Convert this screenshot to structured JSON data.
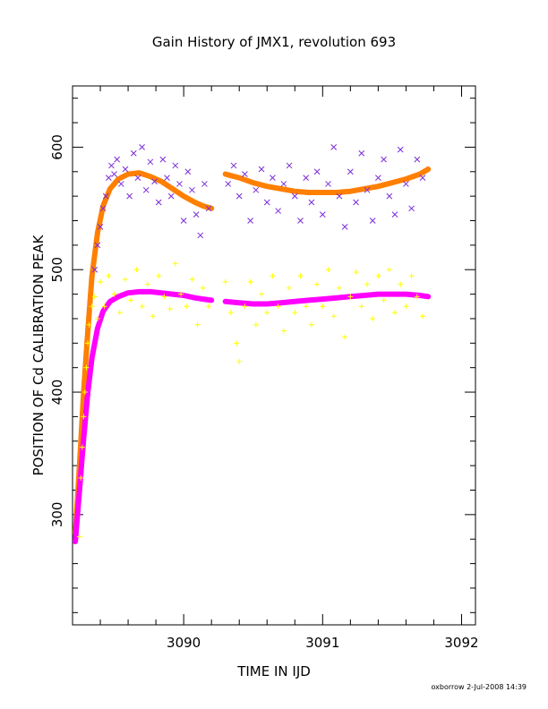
{
  "chart_data": {
    "type": "scatter",
    "title": "Gain History of JMX1, revolution 693",
    "xlabel": "TIME IN IJD",
    "ylabel": "POSITION OF Cd CALIBRATION PEAK",
    "xlim": [
      3089.2,
      3092.1
    ],
    "ylim": [
      210,
      650
    ],
    "xticks": [
      3090,
      3091,
      3092
    ],
    "xtick_labels": [
      "3090",
      "3091",
      "3092"
    ],
    "yticks": [
      300,
      400,
      500,
      600
    ],
    "ytick_labels": [
      "300",
      "400",
      "500",
      "600"
    ],
    "grid": false,
    "footer": "oxborrow  2-Jul-2008 14:39",
    "series": [
      {
        "marker": "x",
        "color": "#7b2cd8",
        "points": [
          [
            3089.36,
            500
          ],
          [
            3089.38,
            520
          ],
          [
            3089.4,
            535
          ],
          [
            3089.42,
            550
          ],
          [
            3089.44,
            560
          ],
          [
            3089.46,
            575
          ],
          [
            3089.48,
            585
          ],
          [
            3089.5,
            578
          ],
          [
            3089.52,
            590
          ],
          [
            3089.55,
            570
          ],
          [
            3089.58,
            582
          ],
          [
            3089.61,
            560
          ],
          [
            3089.64,
            595
          ],
          [
            3089.67,
            575
          ],
          [
            3089.7,
            600
          ],
          [
            3089.73,
            565
          ],
          [
            3089.76,
            588
          ],
          [
            3089.79,
            572
          ],
          [
            3089.82,
            555
          ],
          [
            3089.85,
            590
          ],
          [
            3089.88,
            575
          ],
          [
            3089.91,
            560
          ],
          [
            3089.94,
            585
          ],
          [
            3089.97,
            570
          ],
          [
            3090.0,
            540
          ],
          [
            3090.03,
            580
          ],
          [
            3090.06,
            565
          ],
          [
            3090.09,
            545
          ],
          [
            3090.12,
            528
          ],
          [
            3090.15,
            570
          ],
          [
            3090.18,
            550
          ],
          [
            3090.32,
            570
          ],
          [
            3090.36,
            585
          ],
          [
            3090.4,
            560
          ],
          [
            3090.44,
            578
          ],
          [
            3090.48,
            540
          ],
          [
            3090.52,
            565
          ],
          [
            3090.56,
            582
          ],
          [
            3090.6,
            555
          ],
          [
            3090.64,
            575
          ],
          [
            3090.68,
            548
          ],
          [
            3090.72,
            570
          ],
          [
            3090.76,
            585
          ],
          [
            3090.8,
            560
          ],
          [
            3090.84,
            540
          ],
          [
            3090.88,
            575
          ],
          [
            3090.92,
            555
          ],
          [
            3090.96,
            580
          ],
          [
            3091.0,
            545
          ],
          [
            3091.04,
            570
          ],
          [
            3091.08,
            600
          ],
          [
            3091.12,
            560
          ],
          [
            3091.16,
            535
          ],
          [
            3091.2,
            580
          ],
          [
            3091.24,
            555
          ],
          [
            3091.28,
            595
          ],
          [
            3091.32,
            565
          ],
          [
            3091.36,
            540
          ],
          [
            3091.4,
            575
          ],
          [
            3091.44,
            590
          ],
          [
            3091.48,
            560
          ],
          [
            3091.52,
            545
          ],
          [
            3091.56,
            598
          ],
          [
            3091.6,
            570
          ],
          [
            3091.64,
            550
          ],
          [
            3091.68,
            590
          ],
          [
            3091.72,
            575
          ]
        ]
      },
      {
        "marker": "+",
        "color": "#ffff00",
        "points": [
          [
            3089.25,
            282
          ],
          [
            3089.26,
            330
          ],
          [
            3089.27,
            355
          ],
          [
            3089.28,
            380
          ],
          [
            3089.29,
            400
          ],
          [
            3089.3,
            420
          ],
          [
            3089.31,
            440
          ],
          [
            3089.32,
            455
          ],
          [
            3089.34,
            470
          ],
          [
            3089.36,
            478
          ],
          [
            3089.38,
            460
          ],
          [
            3089.4,
            490
          ],
          [
            3089.43,
            470
          ],
          [
            3089.46,
            495
          ],
          [
            3089.5,
            480
          ],
          [
            3089.54,
            465
          ],
          [
            3089.58,
            492
          ],
          [
            3089.62,
            475
          ],
          [
            3089.66,
            500
          ],
          [
            3089.7,
            470
          ],
          [
            3089.74,
            488
          ],
          [
            3089.78,
            462
          ],
          [
            3089.82,
            495
          ],
          [
            3089.86,
            478
          ],
          [
            3089.9,
            468
          ],
          [
            3089.94,
            505
          ],
          [
            3089.98,
            480
          ],
          [
            3090.02,
            470
          ],
          [
            3090.06,
            492
          ],
          [
            3090.1,
            455
          ],
          [
            3090.14,
            485
          ],
          [
            3090.18,
            470
          ],
          [
            3090.3,
            490
          ],
          [
            3090.34,
            465
          ],
          [
            3090.38,
            440
          ],
          [
            3090.4,
            425
          ],
          [
            3090.44,
            470
          ],
          [
            3090.48,
            490
          ],
          [
            3090.52,
            455
          ],
          [
            3090.56,
            480
          ],
          [
            3090.6,
            465
          ],
          [
            3090.64,
            495
          ],
          [
            3090.68,
            470
          ],
          [
            3090.72,
            450
          ],
          [
            3090.76,
            485
          ],
          [
            3090.8,
            465
          ],
          [
            3090.84,
            495
          ],
          [
            3090.88,
            470
          ],
          [
            3090.92,
            455
          ],
          [
            3090.96,
            488
          ],
          [
            3091.0,
            470
          ],
          [
            3091.04,
            500
          ],
          [
            3091.08,
            462
          ],
          [
            3091.12,
            485
          ],
          [
            3091.16,
            445
          ],
          [
            3091.2,
            478
          ],
          [
            3091.24,
            498
          ],
          [
            3091.28,
            470
          ],
          [
            3091.32,
            488
          ],
          [
            3091.36,
            460
          ],
          [
            3091.4,
            495
          ],
          [
            3091.44,
            475
          ],
          [
            3091.48,
            500
          ],
          [
            3091.52,
            465
          ],
          [
            3091.56,
            488
          ],
          [
            3091.6,
            470
          ],
          [
            3091.64,
            495
          ],
          [
            3091.68,
            478
          ],
          [
            3091.72,
            462
          ]
        ]
      }
    ],
    "fits": [
      {
        "color": "#ff7f00",
        "segments": [
          [
            [
              3089.22,
              285
            ],
            [
              3089.25,
              340
            ],
            [
              3089.28,
              400
            ],
            [
              3089.31,
              450
            ],
            [
              3089.34,
              495
            ],
            [
              3089.38,
              530
            ],
            [
              3089.42,
              552
            ],
            [
              3089.47,
              566
            ],
            [
              3089.53,
              574
            ],
            [
              3089.6,
              578
            ],
            [
              3089.68,
              579
            ],
            [
              3089.76,
              576
            ],
            [
              3089.84,
              572
            ],
            [
              3089.92,
              566
            ],
            [
              3090.0,
              560
            ],
            [
              3090.08,
              555
            ],
            [
              3090.14,
              552
            ],
            [
              3090.2,
              550
            ]
          ],
          [
            [
              3090.3,
              578
            ],
            [
              3090.4,
              575
            ],
            [
              3090.5,
              571
            ],
            [
              3090.6,
              568
            ],
            [
              3090.7,
              566
            ],
            [
              3090.8,
              564
            ],
            [
              3090.9,
              563
            ],
            [
              3091.0,
              563
            ],
            [
              3091.1,
              563
            ],
            [
              3091.2,
              564
            ],
            [
              3091.3,
              566
            ],
            [
              3091.4,
              568
            ],
            [
              3091.5,
              571
            ],
            [
              3091.6,
              574
            ],
            [
              3091.7,
              578
            ],
            [
              3091.76,
              582
            ]
          ]
        ]
      },
      {
        "color": "#ff00ff",
        "segments": [
          [
            [
              3089.22,
              278
            ],
            [
              3089.25,
              320
            ],
            [
              3089.28,
              362
            ],
            [
              3089.31,
              400
            ],
            [
              3089.34,
              428
            ],
            [
              3089.38,
              452
            ],
            [
              3089.42,
              466
            ],
            [
              3089.47,
              474
            ],
            [
              3089.53,
              478
            ],
            [
              3089.6,
              481
            ],
            [
              3089.68,
              482
            ],
            [
              3089.76,
              482
            ],
            [
              3089.84,
              481
            ],
            [
              3089.92,
              480
            ],
            [
              3090.0,
              479
            ],
            [
              3090.08,
              477
            ],
            [
              3090.14,
              476
            ],
            [
              3090.2,
              475
            ]
          ],
          [
            [
              3090.3,
              474
            ],
            [
              3090.4,
              473
            ],
            [
              3090.5,
              472
            ],
            [
              3090.6,
              472
            ],
            [
              3090.7,
              473
            ],
            [
              3090.8,
              474
            ],
            [
              3090.9,
              475
            ],
            [
              3091.0,
              476
            ],
            [
              3091.1,
              477
            ],
            [
              3091.2,
              478
            ],
            [
              3091.3,
              479
            ],
            [
              3091.4,
              480
            ],
            [
              3091.5,
              480
            ],
            [
              3091.6,
              480
            ],
            [
              3091.7,
              479
            ],
            [
              3091.76,
              478
            ]
          ]
        ]
      }
    ]
  }
}
